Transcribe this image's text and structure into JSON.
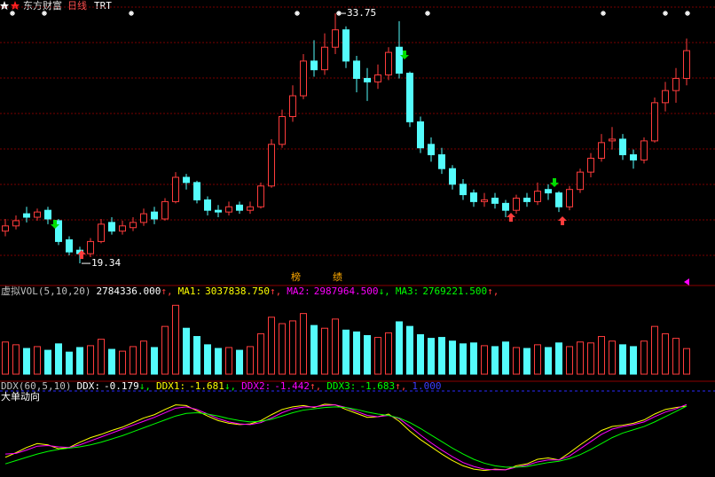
{
  "header": {
    "brand": "东方财富",
    "period": "日线",
    "code": "TRT"
  },
  "chart_data": [
    {
      "type": "candlestick",
      "open": [
        21.2,
        21.5,
        22.2,
        22.0,
        22.4,
        21.8,
        20.7,
        20.1,
        19.9,
        20.6,
        21.7,
        21.2,
        21.4,
        21.7,
        22.3,
        21.9,
        22.9,
        24.3,
        24.0,
        23.0,
        22.4,
        22.3,
        22.7,
        22.4,
        22.6,
        23.8,
        26.2,
        27.8,
        29.0,
        31.0,
        30.5,
        31.8,
        32.8,
        31.0,
        30.0,
        29.8,
        30.2,
        31.8,
        30.3,
        27.5,
        26.2,
        25.6,
        24.8,
        23.9,
        23.4,
        22.9,
        23.1,
        22.8,
        22.4,
        23.1,
        22.9,
        23.6,
        23.4,
        22.6,
        23.6,
        24.6,
        25.4,
        26.4,
        26.5,
        25.6,
        25.3,
        26.4,
        28.6,
        29.3,
        30.0
      ],
      "high": [
        21.9,
        22.1,
        22.6,
        22.5,
        22.6,
        21.9,
        20.9,
        20.3,
        20.8,
        21.9,
        22.0,
        21.8,
        22.0,
        22.5,
        22.6,
        23.1,
        24.6,
        24.5,
        24.1,
        23.2,
        22.7,
        22.9,
        22.9,
        22.9,
        24.0,
        26.5,
        28.2,
        29.6,
        31.4,
        32.2,
        32.6,
        33.75,
        33.0,
        31.3,
        30.6,
        30.8,
        31.8,
        33.3,
        30.4,
        27.8,
        26.6,
        26.0,
        25.0,
        24.2,
        23.6,
        23.4,
        23.4,
        23.0,
        23.3,
        23.4,
        24.0,
        23.9,
        23.5,
        23.8,
        24.8,
        25.7,
        26.8,
        27.2,
        26.8,
        25.9,
        26.6,
        28.9,
        29.8,
        30.6,
        32.3
      ],
      "low": [
        20.9,
        21.3,
        21.7,
        21.8,
        21.6,
        20.4,
        19.8,
        19.34,
        19.7,
        20.5,
        21.0,
        21.0,
        21.2,
        21.5,
        21.6,
        21.8,
        22.8,
        23.6,
        22.8,
        22.1,
        22.0,
        22.1,
        22.2,
        22.2,
        22.5,
        23.7,
        26.0,
        27.5,
        28.8,
        30.1,
        30.2,
        31.4,
        30.6,
        29.2,
        28.7,
        29.4,
        29.9,
        30.0,
        27.2,
        25.7,
        25.2,
        24.5,
        23.6,
        23.0,
        22.6,
        22.6,
        22.5,
        22.0,
        22.2,
        22.6,
        22.7,
        23.0,
        22.3,
        22.4,
        23.4,
        24.3,
        25.2,
        25.9,
        25.3,
        24.8,
        25.1,
        26.3,
        28.1,
        28.6,
        29.6
      ],
      "close": [
        21.5,
        21.8,
        22.0,
        22.3,
        21.9,
        20.6,
        20.0,
        19.9,
        20.6,
        21.6,
        21.2,
        21.5,
        21.7,
        22.2,
        21.9,
        22.9,
        24.3,
        24.0,
        23.0,
        22.4,
        22.3,
        22.6,
        22.4,
        22.6,
        23.8,
        26.2,
        27.8,
        29.0,
        31.0,
        30.5,
        31.8,
        32.8,
        31.0,
        30.0,
        29.8,
        30.2,
        31.5,
        30.3,
        27.5,
        26.0,
        25.6,
        24.8,
        23.9,
        23.3,
        22.9,
        23.0,
        22.8,
        22.4,
        23.1,
        22.9,
        23.5,
        23.4,
        22.6,
        23.6,
        24.6,
        25.4,
        26.3,
        26.5,
        25.6,
        25.3,
        26.4,
        28.6,
        29.3,
        30.0,
        31.6
      ],
      "ylim": [
        18.27,
        34.52
      ],
      "up_color": "#ff3c3c",
      "down_color": "#54fcfc",
      "high_mark": 33.75,
      "low_mark": 19.34,
      "annotations": [
        "榜",
        "绩"
      ]
    },
    {
      "type": "bar",
      "title": "虚拟VOL(5,10,20)",
      "items": [
        {
          "value": 2784336,
          "label": "2784336.000",
          "trend": "↑,",
          "color": "#ffffff"
        },
        {
          "name": "MA1:",
          "value": 3037838.75,
          "label": "3037838.750",
          "trend": "↑,",
          "color": "#ffff00"
        },
        {
          "name": "MA2:",
          "value": 2987964.5,
          "label": "2987964.500",
          "trend": "↓,",
          "color": "#ff00ff"
        },
        {
          "name": "MA3:",
          "value": 2769221.5,
          "label": "2769221.500",
          "trend": "↑,",
          "color": "#00ff00"
        }
      ],
      "values": [
        3500000,
        3200000,
        2800000,
        3000000,
        2600000,
        3300000,
        2400000,
        2900000,
        3100000,
        3800000,
        2700000,
        2500000,
        3000000,
        3600000,
        2900000,
        5200000,
        7500000,
        5000000,
        4100000,
        3200000,
        2800000,
        2900000,
        2600000,
        3000000,
        4400000,
        6200000,
        5500000,
        5800000,
        6600000,
        5300000,
        5000000,
        6000000,
        4800000,
        4600000,
        4200000,
        4000000,
        4500000,
        5700000,
        5200000,
        4300000,
        3900000,
        4000000,
        3600000,
        3300000,
        3400000,
        3100000,
        3000000,
        3500000,
        2900000,
        2800000,
        3200000,
        2900000,
        3400000,
        3000000,
        3500000,
        3400000,
        4100000,
        3600000,
        3200000,
        3000000,
        3600000,
        5200000,
        4400000,
        3900000,
        2784336
      ],
      "ylim": [
        0,
        8400000
      ]
    },
    {
      "type": "line",
      "title": "DDX(60,5,10)",
      "subtitle": "大单动向",
      "items": [
        {
          "name": "DDX:",
          "value": -0.179,
          "trend": "↓,",
          "color": "#ffffff"
        },
        {
          "name": "DDX1:",
          "value": -1.681,
          "trend": "↓,",
          "color": "#ffff00"
        },
        {
          "name": "DDX2:",
          "value": -1.442,
          "trend": "↑,",
          "color": "#ff00ff"
        },
        {
          "name": "DDX3:",
          "value": -1.683,
          "trend": "↑,",
          "color": "#00ff00"
        },
        {
          "value": 1,
          "label": "1.000",
          "color": "#3c3cff"
        }
      ],
      "series": [
        {
          "name": "DDX1",
          "color": "#ffff00",
          "values": [
            -9.5,
            -8.8,
            -8.0,
            -7.4,
            -7.6,
            -8.2,
            -8.0,
            -7.2,
            -6.5,
            -6.0,
            -5.4,
            -4.9,
            -4.2,
            -3.5,
            -3.0,
            -2.2,
            -1.5,
            -1.6,
            -2.4,
            -3.2,
            -3.9,
            -4.3,
            -4.5,
            -4.4,
            -3.9,
            -3.0,
            -2.2,
            -1.8,
            -1.6,
            -1.9,
            -1.4,
            -1.5,
            -2.2,
            -2.8,
            -3.4,
            -3.3,
            -2.9,
            -4.0,
            -5.5,
            -6.8,
            -7.9,
            -9.0,
            -10.0,
            -10.8,
            -11.3,
            -11.5,
            -11.3,
            -11.4,
            -10.8,
            -10.5,
            -9.8,
            -9.6,
            -9.9,
            -8.8,
            -7.6,
            -6.5,
            -5.4,
            -4.8,
            -4.6,
            -4.3,
            -3.8,
            -2.9,
            -2.2,
            -1.9,
            -1.681
          ]
        },
        {
          "name": "DDX2",
          "color": "#ff00ff",
          "values": [
            -9.0,
            -8.9,
            -8.4,
            -7.8,
            -7.7,
            -7.9,
            -8.0,
            -7.6,
            -7.0,
            -6.4,
            -5.8,
            -5.2,
            -4.6,
            -4.0,
            -3.4,
            -2.7,
            -2.0,
            -1.8,
            -2.2,
            -2.9,
            -3.6,
            -4.1,
            -4.4,
            -4.5,
            -4.2,
            -3.5,
            -2.7,
            -2.1,
            -1.8,
            -1.8,
            -1.6,
            -1.5,
            -1.9,
            -2.5,
            -3.1,
            -3.3,
            -3.1,
            -3.6,
            -4.8,
            -6.1,
            -7.3,
            -8.4,
            -9.4,
            -10.3,
            -10.9,
            -11.3,
            -11.4,
            -11.4,
            -11.0,
            -10.7,
            -10.2,
            -9.9,
            -9.9,
            -9.3,
            -8.2,
            -7.1,
            -6.0,
            -5.2,
            -4.8,
            -4.5,
            -4.1,
            -3.3,
            -2.6,
            -2.1,
            -1.442
          ]
        },
        {
          "name": "DDX3",
          "color": "#00ff00",
          "values": [
            -10.5,
            -10.0,
            -9.5,
            -9.0,
            -8.6,
            -8.3,
            -8.1,
            -7.9,
            -7.6,
            -7.2,
            -6.7,
            -6.2,
            -5.6,
            -5.0,
            -4.4,
            -3.8,
            -3.2,
            -2.8,
            -2.7,
            -2.9,
            -3.2,
            -3.6,
            -3.9,
            -4.1,
            -4.0,
            -3.7,
            -3.2,
            -2.7,
            -2.3,
            -2.1,
            -1.9,
            -1.8,
            -1.9,
            -2.2,
            -2.6,
            -2.9,
            -3.1,
            -3.5,
            -4.2,
            -5.1,
            -6.1,
            -7.1,
            -8.1,
            -9.0,
            -9.8,
            -10.4,
            -10.8,
            -11.0,
            -11.0,
            -10.9,
            -10.6,
            -10.3,
            -10.1,
            -9.7,
            -9.1,
            -8.3,
            -7.4,
            -6.5,
            -5.8,
            -5.3,
            -4.8,
            -4.1,
            -3.3,
            -2.5,
            -1.683
          ]
        }
      ],
      "ylim": [
        -12.1,
        -0.6
      ]
    }
  ]
}
